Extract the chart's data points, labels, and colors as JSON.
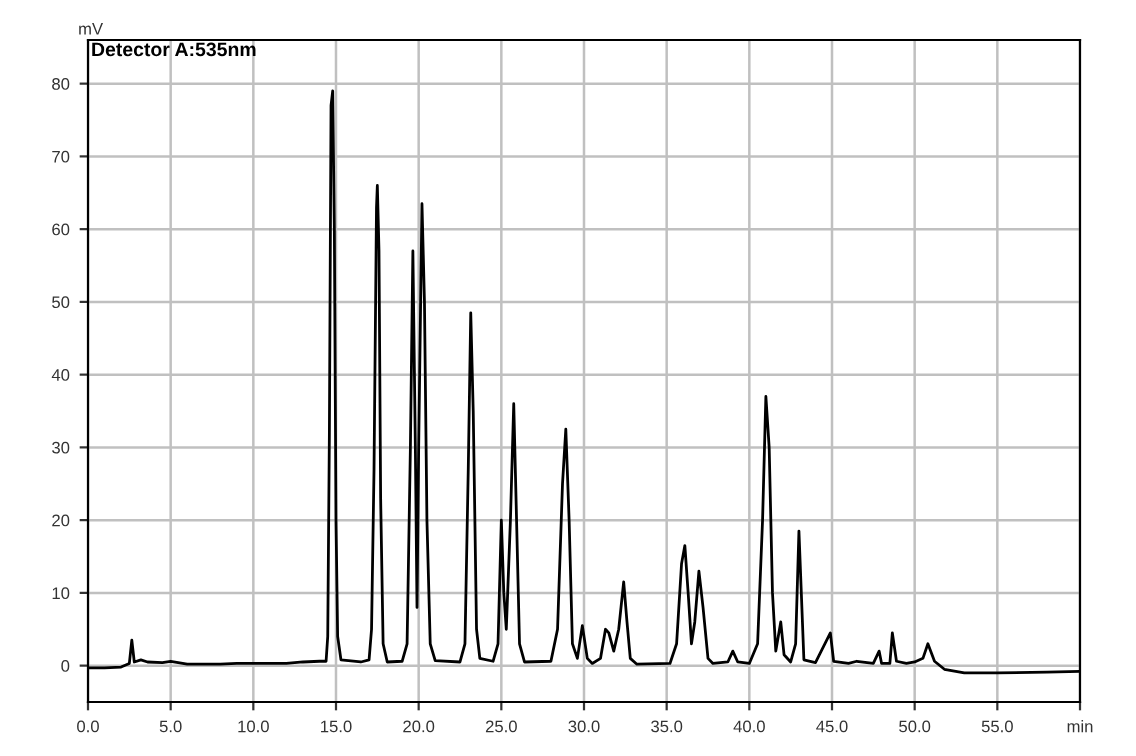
{
  "chart_data": {
    "type": "line",
    "ylabel": "mV",
    "annotations": [
      "Detector A:535nm"
    ],
    "x": [
      0,
      1.0,
      2.0,
      2.5,
      2.65,
      2.8,
      3.2,
      3.6,
      4.5,
      5.0,
      6.0,
      8.0,
      9.0,
      12.0,
      13.0,
      14.0,
      14.4,
      14.5,
      14.6,
      14.7,
      14.8,
      14.9,
      15.0,
      15.1,
      15.3,
      16.5,
      17.0,
      17.15,
      17.3,
      17.45,
      17.5,
      17.6,
      17.7,
      17.85,
      18.1,
      19.0,
      19.3,
      19.5,
      19.65,
      19.8,
      19.9,
      20.0,
      20.2,
      20.35,
      20.5,
      20.7,
      21.0,
      22.5,
      22.8,
      23.0,
      23.15,
      23.3,
      23.5,
      23.7,
      24.5,
      24.8,
      25.0,
      25.15,
      25.3,
      25.55,
      25.75,
      25.9,
      26.1,
      26.4,
      28.0,
      28.4,
      28.7,
      28.9,
      29.1,
      29.3,
      29.6,
      29.9,
      30.2,
      30.5,
      31.0,
      31.3,
      31.5,
      31.8,
      32.1,
      32.4,
      32.6,
      32.8,
      33.2,
      35.2,
      35.6,
      35.9,
      36.1,
      36.3,
      36.5,
      36.7,
      36.95,
      37.2,
      37.5,
      37.8,
      38.7,
      39.0,
      39.3,
      40.0,
      40.5,
      40.8,
      41.0,
      41.2,
      41.4,
      41.6,
      41.9,
      42.1,
      42.5,
      42.8,
      43.0,
      43.3,
      44.0,
      44.9,
      45.1,
      46.0,
      46.5,
      47.5,
      47.85,
      48.0,
      48.5,
      48.65,
      48.9,
      49.5,
      50.0,
      50.5,
      50.8,
      51.2,
      51.8,
      53.0,
      55.0,
      58.0,
      60.0
    ],
    "series": [
      {
        "color": "#000000",
        "values": [
          -0.3,
          -0.3,
          -0.2,
          0.3,
          3.5,
          0.5,
          0.8,
          0.5,
          0.4,
          0.6,
          0.2,
          0.2,
          0.3,
          0.3,
          0.5,
          0.6,
          0.6,
          4,
          32,
          77,
          79,
          60,
          20,
          4,
          0.8,
          0.5,
          0.8,
          5,
          27,
          63,
          66,
          57,
          23,
          3,
          0.5,
          0.6,
          3,
          30,
          57,
          30,
          8,
          30,
          63.5,
          50,
          20,
          3,
          0.7,
          0.5,
          3,
          27,
          48.5,
          35,
          5,
          1,
          0.6,
          3,
          20,
          10,
          5,
          20,
          36,
          22,
          3,
          0.5,
          0.6,
          5,
          25,
          32.5,
          20,
          3,
          1,
          5.5,
          1,
          0.3,
          1,
          5,
          4.5,
          2,
          5,
          11.5,
          6,
          1,
          0.2,
          0.3,
          3,
          14,
          16.5,
          10,
          3,
          6,
          13,
          8,
          1,
          0.3,
          0.5,
          2,
          0.5,
          0.3,
          3,
          20,
          37,
          30,
          10,
          2,
          6,
          1.5,
          0.5,
          3,
          18.5,
          0.8,
          0.4,
          4.5,
          0.6,
          0.3,
          0.6,
          0.3,
          2,
          0.3,
          0.3,
          4.5,
          0.6,
          0.3,
          0.5,
          1,
          3,
          0.6,
          -0.5,
          -1,
          -1,
          -0.9,
          -0.8
        ]
      }
    ],
    "xlim": [
      0,
      60
    ],
    "ylim": [
      -5,
      86
    ],
    "xticks": [
      {
        "value": 0,
        "label": "0.0"
      },
      {
        "value": 5,
        "label": "5.0"
      },
      {
        "value": 10,
        "label": "10.0"
      },
      {
        "value": 15,
        "label": "15.0"
      },
      {
        "value": 20,
        "label": "20.0"
      },
      {
        "value": 25,
        "label": "25.0"
      },
      {
        "value": 30,
        "label": "30.0"
      },
      {
        "value": 35,
        "label": "35.0"
      },
      {
        "value": 40,
        "label": "40.0"
      },
      {
        "value": 45,
        "label": "45.0"
      },
      {
        "value": 50,
        "label": "50.0"
      },
      {
        "value": 55,
        "label": "55.0"
      },
      {
        "value": 60,
        "label": "min"
      }
    ],
    "yticks": [
      0,
      10,
      20,
      30,
      40,
      50,
      60,
      70,
      80
    ],
    "grid": true,
    "line_style": "solid",
    "marker": "none"
  }
}
